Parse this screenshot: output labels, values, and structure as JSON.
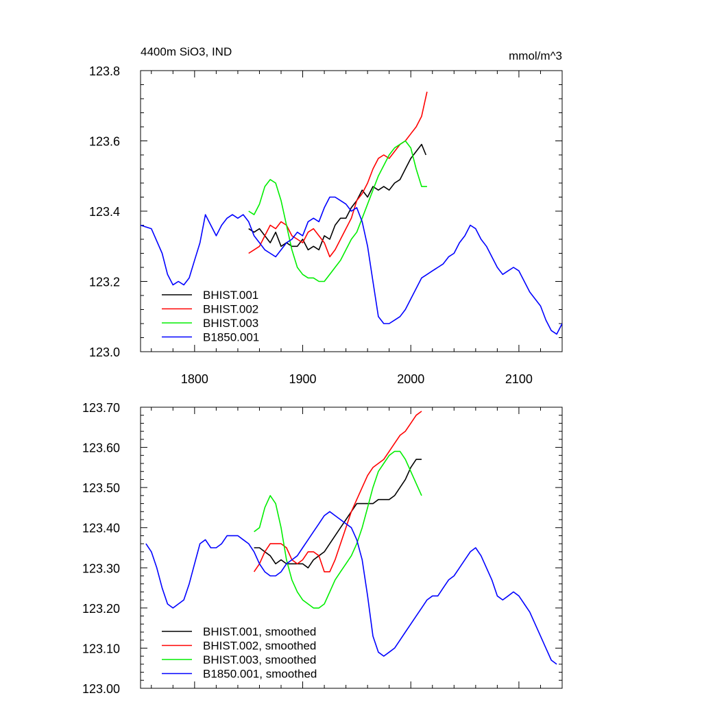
{
  "chart_data": [
    {
      "type": "line",
      "title_left": "4400m SiO3, IND",
      "title_right": "mmol/m^3",
      "xlim": [
        1750,
        2140
      ],
      "ylim": [
        123.0,
        123.8
      ],
      "x_ticks": [
        1800,
        1900,
        2000,
        2100
      ],
      "x_tick_labels": [
        "1800",
        "1900",
        "2000",
        "2100"
      ],
      "y_ticks": [
        123.0,
        123.2,
        123.4,
        123.6,
        123.8
      ],
      "y_tick_labels": [
        "123.0",
        "123.2",
        "123.4",
        "123.6",
        "123.8"
      ],
      "legend_position": "bottom-left",
      "series": [
        {
          "name": "BHIST.001",
          "color": "#000000",
          "x": [
            1850,
            1855,
            1860,
            1865,
            1870,
            1875,
            1880,
            1885,
            1890,
            1895,
            1900,
            1905,
            1910,
            1915,
            1920,
            1925,
            1930,
            1935,
            1940,
            1945,
            1950,
            1955,
            1960,
            1965,
            1970,
            1975,
            1980,
            1985,
            1990,
            1995,
            2000,
            2005,
            2010,
            2014
          ],
          "y": [
            123.35,
            123.34,
            123.35,
            123.33,
            123.31,
            123.34,
            123.3,
            123.31,
            123.3,
            123.3,
            123.32,
            123.29,
            123.3,
            123.29,
            123.33,
            123.32,
            123.36,
            123.38,
            123.38,
            123.41,
            123.43,
            123.46,
            123.44,
            123.47,
            123.46,
            123.47,
            123.46,
            123.48,
            123.49,
            123.52,
            123.55,
            123.57,
            123.59,
            123.56
          ]
        },
        {
          "name": "BHIST.002",
          "color": "#ff0000",
          "x": [
            1850,
            1855,
            1860,
            1865,
            1870,
            1875,
            1880,
            1885,
            1890,
            1895,
            1900,
            1905,
            1910,
            1915,
            1920,
            1925,
            1930,
            1935,
            1940,
            1945,
            1950,
            1955,
            1960,
            1965,
            1970,
            1975,
            1980,
            1985,
            1990,
            1995,
            2000,
            2005,
            2010,
            2015
          ],
          "y": [
            123.28,
            123.29,
            123.3,
            123.33,
            123.36,
            123.35,
            123.37,
            123.36,
            123.33,
            123.32,
            123.31,
            123.34,
            123.35,
            123.33,
            123.31,
            123.27,
            123.29,
            123.32,
            123.35,
            123.38,
            123.43,
            123.45,
            123.48,
            123.52,
            123.55,
            123.56,
            123.55,
            123.57,
            123.59,
            123.6,
            123.62,
            123.64,
            123.67,
            123.74
          ]
        },
        {
          "name": "BHIST.003",
          "color": "#00ee00",
          "x": [
            1850,
            1855,
            1860,
            1865,
            1870,
            1875,
            1880,
            1885,
            1890,
            1895,
            1900,
            1905,
            1910,
            1915,
            1920,
            1925,
            1930,
            1935,
            1940,
            1945,
            1950,
            1955,
            1960,
            1965,
            1970,
            1975,
            1980,
            1985,
            1990,
            1995,
            2000,
            2005,
            2010,
            2015
          ],
          "y": [
            123.4,
            123.39,
            123.42,
            123.47,
            123.49,
            123.48,
            123.43,
            123.36,
            123.29,
            123.24,
            123.22,
            123.21,
            123.21,
            123.2,
            123.2,
            123.22,
            123.24,
            123.26,
            123.29,
            123.32,
            123.34,
            123.38,
            123.42,
            123.46,
            123.5,
            123.53,
            123.56,
            123.58,
            123.59,
            123.6,
            123.58,
            123.52,
            123.47,
            123.47
          ]
        },
        {
          "name": "B1850.001",
          "color": "#0000ff",
          "x": [
            1750,
            1760,
            1770,
            1775,
            1780,
            1785,
            1790,
            1795,
            1800,
            1805,
            1810,
            1815,
            1820,
            1825,
            1830,
            1835,
            1840,
            1845,
            1850,
            1855,
            1860,
            1865,
            1870,
            1875,
            1880,
            1885,
            1890,
            1895,
            1900,
            1905,
            1910,
            1915,
            1920,
            1925,
            1930,
            1935,
            1940,
            1945,
            1950,
            1955,
            1960,
            1965,
            1970,
            1975,
            1980,
            1985,
            1990,
            1995,
            2000,
            2005,
            2010,
            2015,
            2020,
            2025,
            2030,
            2035,
            2040,
            2045,
            2050,
            2055,
            2060,
            2065,
            2070,
            2075,
            2080,
            2085,
            2090,
            2095,
            2100,
            2105,
            2110,
            2115,
            2120,
            2125,
            2130,
            2135,
            2140
          ],
          "y": [
            123.36,
            123.35,
            123.28,
            123.22,
            123.19,
            123.2,
            123.19,
            123.21,
            123.26,
            123.31,
            123.39,
            123.36,
            123.33,
            123.36,
            123.38,
            123.39,
            123.38,
            123.39,
            123.37,
            123.33,
            123.31,
            123.29,
            123.28,
            123.27,
            123.29,
            123.31,
            123.32,
            123.34,
            123.33,
            123.37,
            123.38,
            123.37,
            123.41,
            123.44,
            123.44,
            123.43,
            123.42,
            123.4,
            123.41,
            123.37,
            123.3,
            123.2,
            123.1,
            123.08,
            123.08,
            123.09,
            123.1,
            123.12,
            123.15,
            123.18,
            123.21,
            123.22,
            123.23,
            123.24,
            123.25,
            123.27,
            123.28,
            123.31,
            123.33,
            123.36,
            123.35,
            123.32,
            123.3,
            123.27,
            123.24,
            123.22,
            123.23,
            123.24,
            123.23,
            123.2,
            123.17,
            123.15,
            123.13,
            123.09,
            123.06,
            123.05,
            123.08
          ]
        }
      ]
    },
    {
      "type": "line",
      "xlim": [
        1750,
        2140
      ],
      "ylim": [
        123.0,
        123.7
      ],
      "x_ticks": [
        1800,
        1900,
        2000,
        2100
      ],
      "y_ticks": [
        123.0,
        123.1,
        123.2,
        123.3,
        123.4,
        123.5,
        123.6,
        123.7
      ],
      "y_tick_labels": [
        "123.00",
        "123.10",
        "123.20",
        "123.30",
        "123.40",
        "123.50",
        "123.60",
        "123.70"
      ],
      "legend_position": "bottom-left",
      "series": [
        {
          "name": "BHIST.001, smoothed",
          "color": "#000000",
          "x": [
            1855,
            1860,
            1865,
            1870,
            1875,
            1880,
            1885,
            1890,
            1895,
            1900,
            1905,
            1910,
            1915,
            1920,
            1925,
            1930,
            1935,
            1940,
            1945,
            1950,
            1955,
            1960,
            1965,
            1970,
            1975,
            1980,
            1985,
            1990,
            1995,
            2000,
            2005,
            2010
          ],
          "y": [
            123.35,
            123.35,
            123.34,
            123.33,
            123.31,
            123.32,
            123.31,
            123.31,
            123.31,
            123.31,
            123.3,
            123.32,
            123.33,
            123.34,
            123.36,
            123.38,
            123.4,
            123.42,
            123.44,
            123.46,
            123.46,
            123.46,
            123.46,
            123.47,
            123.47,
            123.47,
            123.48,
            123.5,
            123.52,
            123.55,
            123.57,
            123.57
          ]
        },
        {
          "name": "BHIST.002, smoothed",
          "color": "#ff0000",
          "x": [
            1855,
            1860,
            1865,
            1870,
            1875,
            1880,
            1885,
            1890,
            1895,
            1900,
            1905,
            1910,
            1915,
            1920,
            1925,
            1930,
            1935,
            1940,
            1945,
            1950,
            1955,
            1960,
            1965,
            1970,
            1975,
            1980,
            1985,
            1990,
            1995,
            2000,
            2005,
            2010
          ],
          "y": [
            123.29,
            123.31,
            123.34,
            123.36,
            123.36,
            123.36,
            123.35,
            123.32,
            123.31,
            123.32,
            123.34,
            123.34,
            123.33,
            123.29,
            123.29,
            123.32,
            123.36,
            123.4,
            123.44,
            123.47,
            123.5,
            123.53,
            123.55,
            123.56,
            123.57,
            123.59,
            123.61,
            123.63,
            123.64,
            123.66,
            123.68,
            123.69
          ]
        },
        {
          "name": "BHIST.003, smoothed",
          "color": "#00ee00",
          "x": [
            1855,
            1860,
            1865,
            1870,
            1875,
            1880,
            1885,
            1890,
            1895,
            1900,
            1905,
            1910,
            1915,
            1920,
            1925,
            1930,
            1935,
            1940,
            1945,
            1950,
            1955,
            1960,
            1965,
            1970,
            1975,
            1980,
            1985,
            1990,
            1995,
            2000,
            2005,
            2010
          ],
          "y": [
            123.39,
            123.4,
            123.45,
            123.48,
            123.46,
            123.4,
            123.32,
            123.27,
            123.24,
            123.22,
            123.21,
            123.2,
            123.2,
            123.21,
            123.24,
            123.27,
            123.29,
            123.31,
            123.33,
            123.36,
            123.4,
            123.45,
            123.5,
            123.54,
            123.56,
            123.58,
            123.59,
            123.59,
            123.57,
            123.54,
            123.51,
            123.48
          ]
        },
        {
          "name": "B1850.001, smoothed",
          "color": "#0000ff",
          "x": [
            1755,
            1760,
            1765,
            1770,
            1775,
            1780,
            1785,
            1790,
            1795,
            1800,
            1805,
            1810,
            1815,
            1820,
            1825,
            1830,
            1835,
            1840,
            1845,
            1850,
            1855,
            1860,
            1865,
            1870,
            1875,
            1880,
            1885,
            1890,
            1895,
            1900,
            1905,
            1910,
            1915,
            1920,
            1925,
            1930,
            1935,
            1940,
            1945,
            1950,
            1955,
            1960,
            1965,
            1970,
            1975,
            1980,
            1985,
            1990,
            1995,
            2000,
            2005,
            2010,
            2015,
            2020,
            2025,
            2030,
            2035,
            2040,
            2045,
            2050,
            2055,
            2060,
            2065,
            2070,
            2075,
            2080,
            2085,
            2090,
            2095,
            2100,
            2105,
            2110,
            2115,
            2120,
            2125,
            2130,
            2135
          ],
          "y": [
            123.36,
            123.34,
            123.3,
            123.25,
            123.21,
            123.2,
            123.21,
            123.22,
            123.26,
            123.31,
            123.36,
            123.37,
            123.35,
            123.35,
            123.36,
            123.38,
            123.38,
            123.38,
            123.37,
            123.36,
            123.34,
            123.31,
            123.29,
            123.28,
            123.28,
            123.29,
            123.31,
            123.32,
            123.33,
            123.35,
            123.37,
            123.39,
            123.41,
            123.43,
            123.44,
            123.43,
            123.42,
            123.41,
            123.4,
            123.37,
            123.32,
            123.23,
            123.13,
            123.09,
            123.08,
            123.09,
            123.1,
            123.12,
            123.14,
            123.16,
            123.18,
            123.2,
            123.22,
            123.23,
            123.23,
            123.25,
            123.27,
            123.28,
            123.3,
            123.32,
            123.34,
            123.35,
            123.33,
            123.3,
            123.27,
            123.23,
            123.22,
            123.23,
            123.24,
            123.23,
            123.21,
            123.19,
            123.16,
            123.13,
            123.1,
            123.07,
            123.06
          ]
        }
      ]
    }
  ]
}
